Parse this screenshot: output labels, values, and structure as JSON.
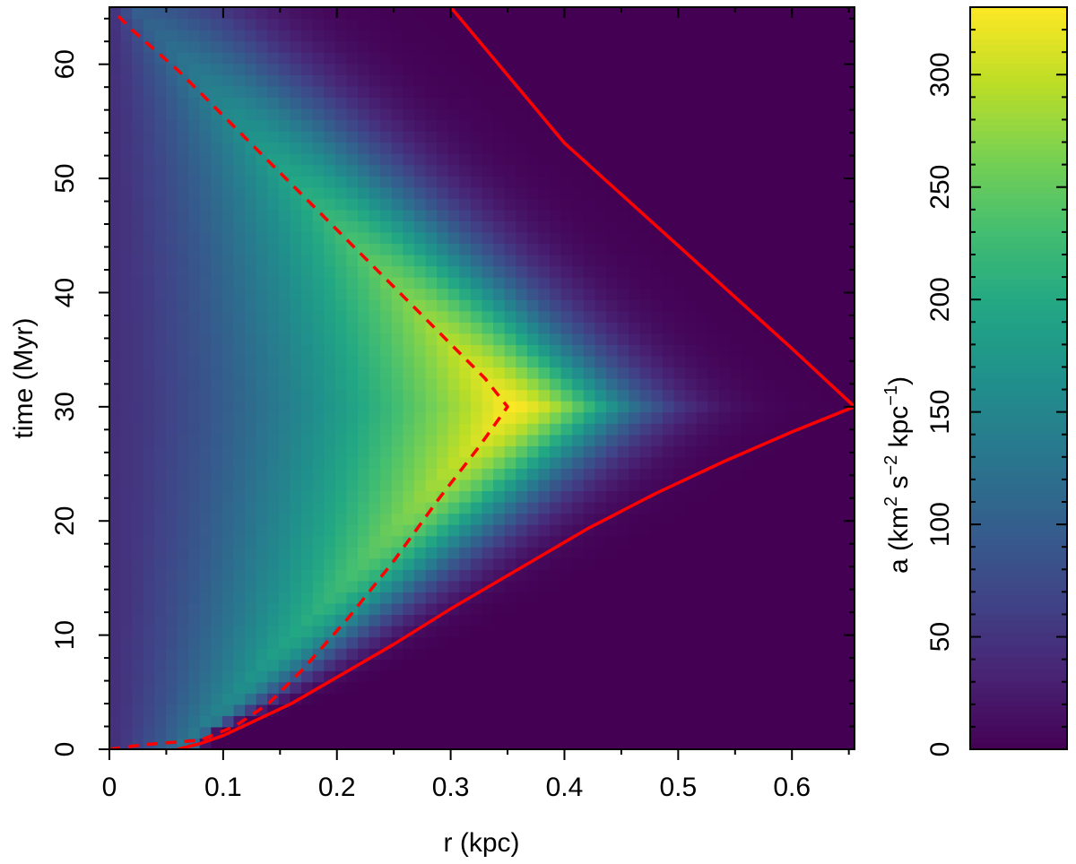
{
  "chart_data": {
    "type": "heatmap",
    "title": "",
    "xlabel": "r (kpc)",
    "ylabel": "time (Myr)",
    "xlim": [
      0,
      0.655
    ],
    "ylim": [
      0,
      65
    ],
    "x_ticks": [
      0,
      0.1,
      0.2,
      0.3,
      0.4,
      0.5,
      0.6
    ],
    "x_tick_labels": [
      "0",
      "0.1",
      "0.2",
      "0.3",
      "0.4",
      "0.5",
      "0.6"
    ],
    "y_ticks": [
      0,
      10,
      20,
      30,
      40,
      50,
      60
    ],
    "y_tick_labels": [
      "0",
      "10",
      "20",
      "30",
      "40",
      "50",
      "60"
    ],
    "grid": false,
    "colormap": "viridis",
    "colorbar": {
      "label_main": "a (km",
      "label_sup1": "2",
      "label_mid1": " s",
      "label_sup2": "−2",
      "label_mid2": " kpc",
      "label_sup3": "−1",
      "label_end": ")",
      "range": [
        0,
        330
      ],
      "ticks": [
        0,
        50,
        100,
        150,
        200,
        250,
        300
      ],
      "tick_labels": [
        "0",
        "50",
        "100",
        "150",
        "200",
        "250",
        "300"
      ]
    },
    "heatmap_model": {
      "description_of_field": "a(r,t) peaks near r=0.35 kpc at t=30 Myr, decays outward; zero beyond solid boundary",
      "peak_value": 330,
      "peak_r": 0.35,
      "peak_t": 30,
      "center_value": 45
    },
    "series": [
      {
        "name": "",
        "style": "dashed",
        "color": "#ff0000",
        "x": [
          0.0,
          0.03,
          0.08,
          0.11,
          0.14,
          0.17,
          0.21,
          0.25,
          0.29,
          0.325,
          0.35,
          0.33,
          0.3,
          0.26,
          0.22,
          0.18,
          0.14,
          0.1,
          0.06,
          0.02,
          0.005
        ],
        "y": [
          0.0,
          0.4,
          0.8,
          2.0,
          4.0,
          7.0,
          11.5,
          16.5,
          22.0,
          26.5,
          30.0,
          32.5,
          35.5,
          39.5,
          43.5,
          47.5,
          51.5,
          55.5,
          59.5,
          63.0,
          64.5
        ]
      },
      {
        "name": "",
        "style": "solid",
        "color": "#ff0000",
        "x": [
          0.06,
          0.08,
          0.1,
          0.13,
          0.16,
          0.2,
          0.25,
          0.3,
          0.36,
          0.42,
          0.48,
          0.54,
          0.6,
          0.655,
          0.6,
          0.5,
          0.4,
          0.3
        ],
        "y": [
          0.0,
          0.5,
          1.2,
          2.6,
          4.0,
          6.3,
          9.2,
          12.3,
          15.8,
          19.3,
          22.4,
          25.2,
          27.8,
          30.0,
          35.1,
          44.1,
          53.1,
          65.0
        ]
      }
    ]
  }
}
